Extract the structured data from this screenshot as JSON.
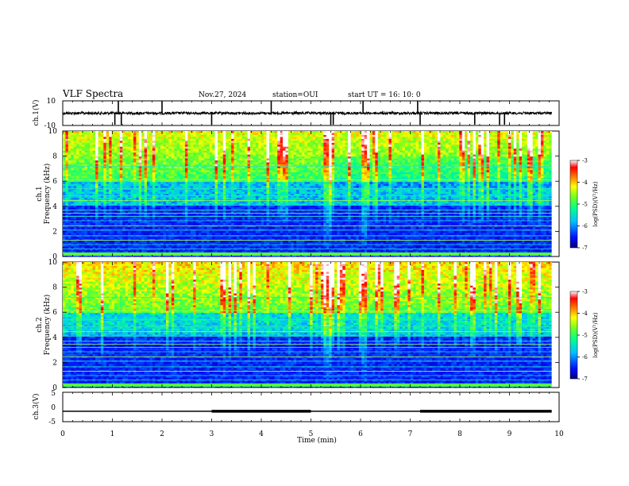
{
  "header": {
    "title": "VLF Spectra",
    "date": "Nov.27, 2024",
    "station": "station=OUI",
    "start": "start  UT =   16: 10: 0"
  },
  "chart_data": [
    {
      "type": "line",
      "panel": "ch1-waveform",
      "ylabel": "ch.1(V)",
      "ylim": [
        -10,
        10
      ],
      "yticks": [
        "10",
        "-10"
      ],
      "xlim": [
        0,
        10
      ],
      "baseline": 0,
      "note_values": "noisy trace around 0 V with sparse spikes",
      "spikes_min": [
        1.05,
        1.12,
        1.18,
        2.0,
        3.0,
        4.2,
        5.4,
        5.45,
        6.05,
        7.15,
        7.2,
        8.3,
        8.8,
        8.9
      ]
    },
    {
      "type": "heatmap",
      "panel": "ch1-spectrogram",
      "ylabel": "ch.1\nFrequency  (kHz)",
      "ylim": [
        0,
        10
      ],
      "yticks": [
        "0",
        "2",
        "4",
        "6",
        "8",
        "10"
      ],
      "xlim": [
        0,
        9.85
      ],
      "colorbar": {
        "label": "log(PSD)(V²/Hz)",
        "range": [
          -7,
          -3
        ],
        "ticks": [
          "-3",
          "-4",
          "-5",
          "-6",
          "-7"
        ]
      }
    },
    {
      "type": "heatmap",
      "panel": "ch2-spectrogram",
      "ylabel": "ch.2\nFrequency  (kHz)",
      "ylim": [
        0,
        10
      ],
      "yticks": [
        "0",
        "2",
        "4",
        "6",
        "8",
        "10"
      ],
      "xlim": [
        0,
        9.85
      ],
      "colorbar": {
        "label": "log(PSD)(V²/Hz)",
        "range": [
          -7,
          -3
        ],
        "ticks": [
          "-3",
          "-4",
          "-5",
          "-6",
          "-7"
        ]
      }
    },
    {
      "type": "line",
      "panel": "ch3-level",
      "ylabel": "ch.3(V)",
      "ylim": [
        -5,
        5
      ],
      "yticks": [
        "5",
        "0",
        "-5"
      ],
      "xlim": [
        0,
        10
      ],
      "x_end": 9.85,
      "level": -1.5,
      "thick_segments": [
        [
          3.0,
          5.0
        ],
        [
          7.2,
          9.85
        ]
      ]
    }
  ],
  "xaxis": {
    "label": "Time  (min)",
    "ticks": [
      "0",
      "1",
      "2",
      "3",
      "4",
      "5",
      "6",
      "7",
      "8",
      "9",
      "10"
    ]
  },
  "colors": {
    "colormap": [
      "#0000a0",
      "#0020ff",
      "#00c8ff",
      "#00ffa0",
      "#60ff30",
      "#ffff00",
      "#ff8000",
      "#ff0000",
      "#ffffff"
    ]
  }
}
